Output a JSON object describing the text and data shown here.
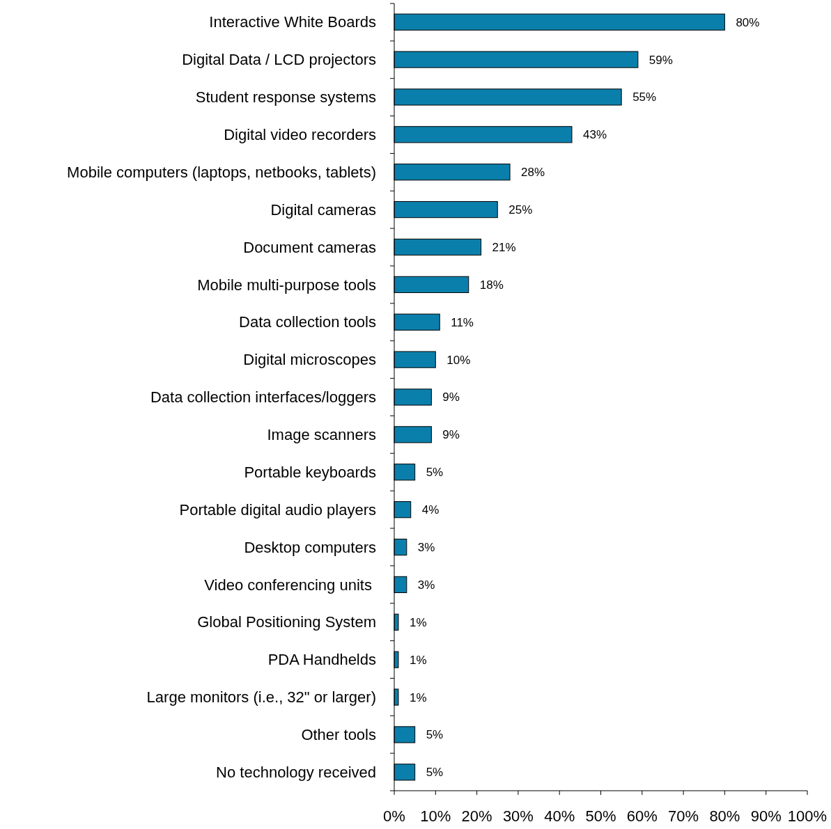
{
  "chart_data": {
    "type": "bar",
    "orientation": "horizontal",
    "categories": [
      "Interactive White Boards",
      "Digital Data / LCD projectors",
      "Student response systems",
      "Digital video recorders",
      "Mobile computers (laptops, netbooks, tablets)",
      "Digital cameras",
      "Document cameras",
      "Mobile multi-purpose tools",
      "Data collection tools",
      "Digital microscopes",
      "Data collection interfaces/loggers",
      "Image scanners",
      "Portable keyboards",
      "Portable digital audio players",
      "Desktop computers",
      "Video conferencing units ",
      "Global Positioning System",
      "PDA Handhelds",
      "Large monitors (i.e., 32\" or larger)",
      "Other tools",
      "No technology received"
    ],
    "values": [
      80,
      59,
      55,
      43,
      28,
      25,
      21,
      18,
      11,
      10,
      9,
      9,
      5,
      4,
      3,
      3,
      1,
      1,
      1,
      5,
      5
    ],
    "value_labels": [
      "80%",
      "59%",
      "55%",
      "43%",
      "28%",
      "25%",
      "21%",
      "18%",
      "11%",
      "10%",
      "9%",
      "9%",
      "5%",
      "4%",
      "3%",
      "3%",
      "1%",
      "1%",
      "1%",
      "5%",
      "5%"
    ],
    "color": "#0b7fab",
    "xlim": [
      0,
      100
    ],
    "xticks": [
      {
        "value": 0,
        "label": "0%"
      },
      {
        "value": 10,
        "label": "10%"
      },
      {
        "value": 20,
        "label": "20%"
      },
      {
        "value": 30,
        "label": "30%"
      },
      {
        "value": 40,
        "label": "40%"
      },
      {
        "value": 50,
        "label": "50%"
      },
      {
        "value": 60,
        "label": "60%"
      },
      {
        "value": 70,
        "label": "70%"
      },
      {
        "value": 80,
        "label": "80%"
      },
      {
        "value": 90,
        "label": "90%"
      },
      {
        "value": 100,
        "label": "100%"
      }
    ],
    "grid": false
  }
}
